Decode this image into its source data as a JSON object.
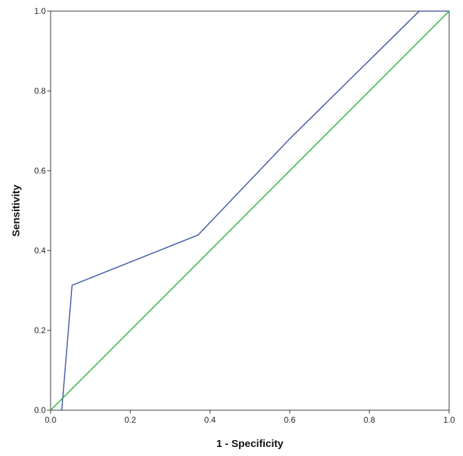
{
  "chart_data": {
    "type": "line",
    "title": "",
    "xlabel": "1 - Specificity",
    "ylabel": "Sensitivity",
    "xlim": [
      0,
      1
    ],
    "ylim": [
      0,
      1
    ],
    "xticks": [
      "0.0",
      "0.2",
      "0.4",
      "0.6",
      "0.8",
      "1.0"
    ],
    "yticks": [
      "0.0",
      "0.2",
      "0.4",
      "0.6",
      "0.8",
      "1.0"
    ],
    "grid": false,
    "legend": "none",
    "series": [
      {
        "color": "#4a5fa8",
        "x": [
          0.028,
          0.054,
          0.37,
          0.6,
          0.925,
          1.0
        ],
        "y": [
          0.0,
          0.313,
          0.439,
          0.68,
          1.0,
          1.0
        ]
      },
      {
        "color": "#3cb44b",
        "x": [
          0.0,
          1.0
        ],
        "y": [
          0.0,
          1.0
        ]
      }
    ]
  }
}
